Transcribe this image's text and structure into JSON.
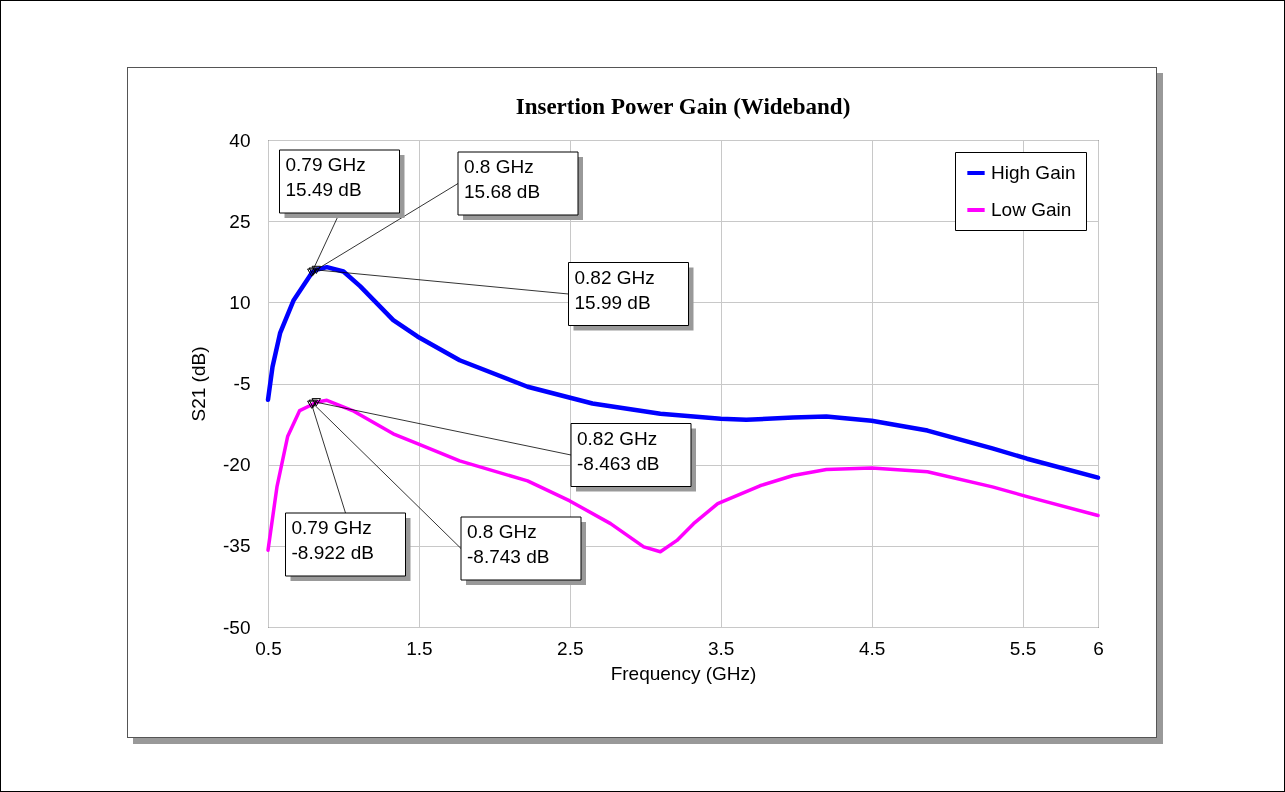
{
  "chart_data": {
    "type": "line",
    "title": "Insertion Power Gain (Wideband)",
    "xlabel": "Frequency (GHz)",
    "ylabel": "S21 (dB)",
    "xlim": [
      0.5,
      6
    ],
    "xticks": [
      0.5,
      1.5,
      2.5,
      3.5,
      4.5,
      5.5,
      6
    ],
    "ylim": [
      -50,
      40
    ],
    "yticks": [
      40,
      25,
      10,
      -5,
      -20,
      -35,
      -50
    ],
    "grid": true,
    "legend": "top right",
    "series": [
      {
        "name": "High Gain",
        "color": "#0000ff",
        "x": [
          0.5,
          0.53,
          0.58,
          0.67,
          0.78,
          0.79,
          0.8,
          0.82,
          0.89,
          1.0,
          1.11,
          1.33,
          1.49,
          1.77,
          2.22,
          2.65,
          3.1,
          3.5,
          3.67,
          3.98,
          4.2,
          4.5,
          4.87,
          5.3,
          5.53,
          6.0
        ],
        "values": [
          -8,
          -1.9,
          4.3,
          10.4,
          15,
          15.49,
          15.68,
          15.99,
          16.5,
          15.7,
          13,
          6.7,
          3.7,
          -0.7,
          -5.6,
          -8.7,
          -10.6,
          -11.5,
          -11.7,
          -11.3,
          -11.1,
          -11.9,
          -13.7,
          -17,
          -18.9,
          -22.4
        ]
      },
      {
        "name": "Low Gain",
        "color": "#ff00ff",
        "x": [
          0.5,
          0.56,
          0.63,
          0.71,
          0.79,
          0.8,
          0.82,
          0.89,
          1.06,
          1.33,
          1.49,
          1.77,
          2.22,
          2.5,
          2.77,
          2.99,
          3.1,
          3.21,
          3.32,
          3.48,
          3.76,
          3.98,
          4.2,
          4.5,
          4.87,
          5.3,
          5.53,
          6.0
        ],
        "values": [
          -35.8,
          -24,
          -14.8,
          -10,
          -8.922,
          -8.743,
          -8.463,
          -8.1,
          -10,
          -14.3,
          -16.1,
          -19.3,
          -23,
          -26.7,
          -30.9,
          -35.2,
          -36.1,
          -34,
          -30.9,
          -27.2,
          -23.9,
          -22,
          -20.9,
          -20.6,
          -21.3,
          -24.1,
          -25.9,
          -29.4
        ]
      }
    ],
    "annotations": [
      {
        "text": "0.79 GHz\n15.49 dB",
        "x": 0.79,
        "y": 15.49
      },
      {
        "text": "0.8 GHz\n15.68 dB",
        "x": 0.8,
        "y": 15.68
      },
      {
        "text": "0.82 GHz\n15.99 dB",
        "x": 0.82,
        "y": 15.99
      },
      {
        "text": "0.82 GHz\n-8.463 dB",
        "x": 0.82,
        "y": -8.463
      },
      {
        "text": "0.79 GHz\n-8.922 dB",
        "x": 0.79,
        "y": -8.922
      },
      {
        "text": "0.8 GHz\n-8.743 dB",
        "x": 0.8,
        "y": -8.743
      }
    ]
  }
}
